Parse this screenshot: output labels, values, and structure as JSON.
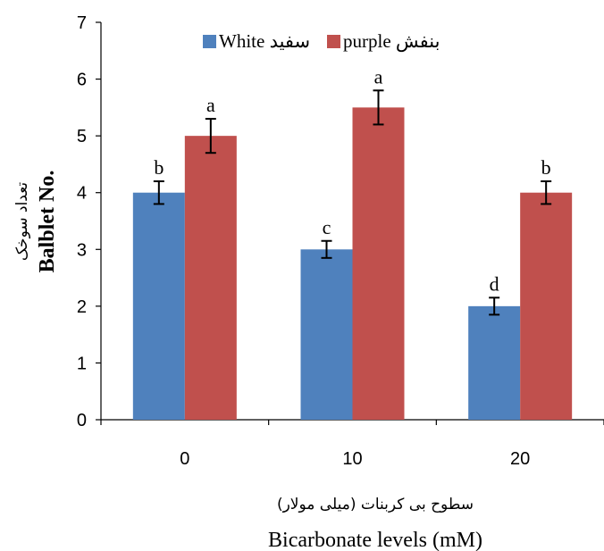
{
  "chart_data": {
    "type": "bar",
    "categories": [
      "0",
      "10",
      "20"
    ],
    "series": [
      {
        "name": "White سفید",
        "color": "#4F81BD",
        "values": [
          4,
          3,
          2
        ],
        "errors": [
          0.2,
          0.15,
          0.15
        ],
        "letters": [
          "b",
          "c",
          "d"
        ]
      },
      {
        "name": "purple بنفش",
        "color": "#C0504D",
        "values": [
          5,
          5.5,
          4
        ],
        "errors": [
          0.3,
          0.3,
          0.2
        ],
        "letters": [
          "a",
          "a",
          "b"
        ]
      }
    ],
    "ylim": [
      0,
      7
    ],
    "yticks": [
      "0",
      "1",
      "2",
      "3",
      "4",
      "5",
      "6",
      "7"
    ],
    "ylabel_fa": "تعداد سوخک",
    "ylabel_en": "Balblet No.",
    "xlabel_fa": "سطوح بی کربنات (میلی مولار)",
    "xlabel_en": "Bicarbonate levels (mM)",
    "legend_position": "top-center",
    "grid": false
  }
}
